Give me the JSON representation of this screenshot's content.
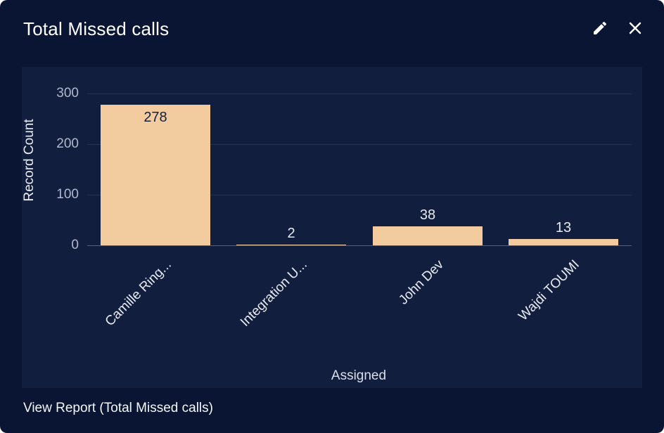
{
  "widget": {
    "title": "Total Missed calls",
    "footer_link": "View Report (Total Missed calls)"
  },
  "header": {
    "edit_icon": "pencil-icon",
    "close_icon": "close-icon"
  },
  "colors": {
    "card_bg": "#0A1533",
    "panel_bg": "#121E3E",
    "bar": "#F2CB9E",
    "title_text": "#FFFFFF",
    "tick_text": "#B0B8CC",
    "category_text": "#E7EAF2",
    "inside_label_text": "#13203F",
    "outside_label_text": "#E6EAF2",
    "link_text": "#F4F7FD"
  },
  "chart_data": {
    "type": "bar",
    "title": "Total Missed calls",
    "categories": [
      "Camille Ring...",
      "Integration U...",
      "John Dev",
      "Wajdi TOUMI"
    ],
    "values": [
      278,
      2,
      38,
      13
    ],
    "xlabel": "Assigned",
    "ylabel": "Record Count",
    "ylim": [
      0,
      300
    ],
    "yticks": [
      0,
      100,
      200,
      300
    ],
    "grid": true,
    "legend": false,
    "bar_color": "#F2CB9E"
  }
}
